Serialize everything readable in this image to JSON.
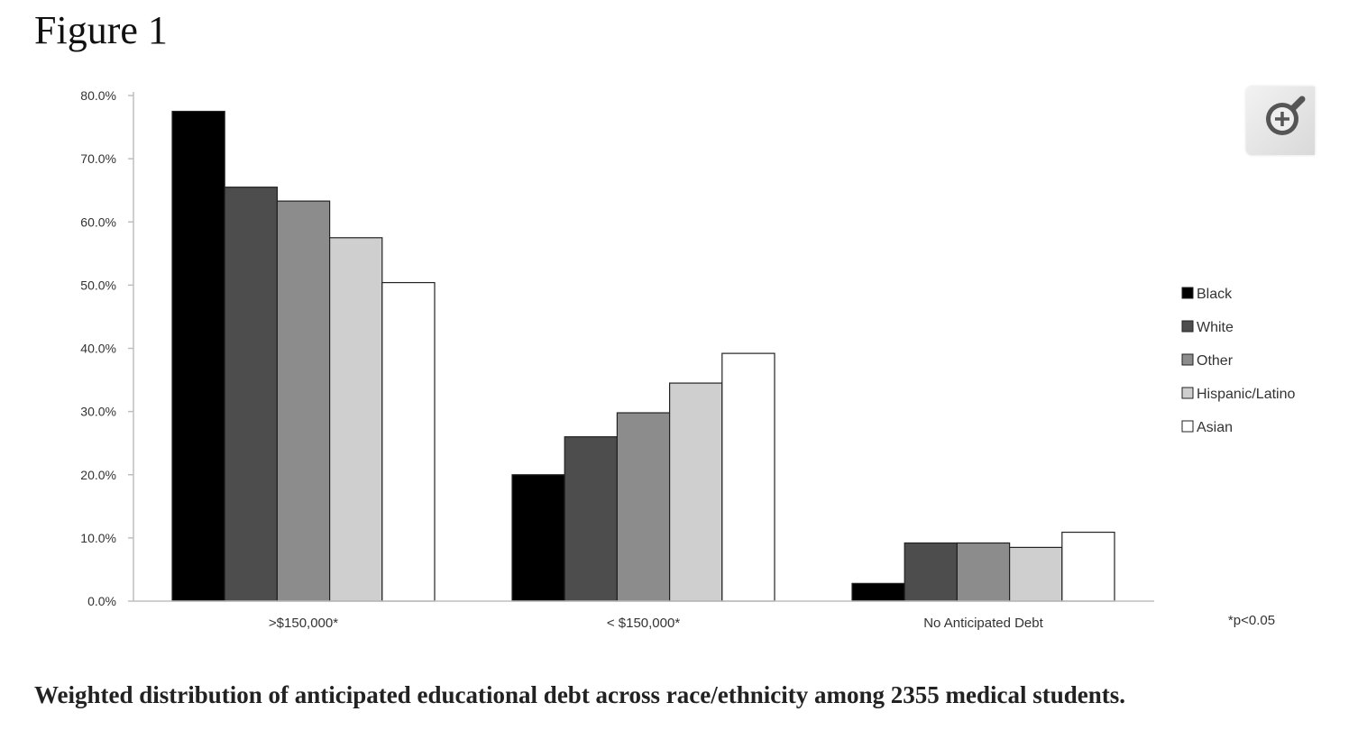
{
  "figure_label": "Figure 1",
  "caption": "Weighted distribution of anticipated educational debt across race/ethnicity among 2355 medical students.",
  "footnote": "*p<0.05",
  "colors": {
    "Black": "#000000",
    "White": "#4d4d4d",
    "Other": "#8c8c8c",
    "Hispanic/Latino": "#cfcfcf",
    "Asian": "#ffffff",
    "axis": "#bfbfbf",
    "bar_outline": "#222222"
  },
  "zoom_icon": "zoom-in-magnifier-icon",
  "chart_data": {
    "type": "bar",
    "categories": [
      ">$150,000*",
      "< $150,000*",
      "No Anticipated Debt"
    ],
    "series": [
      {
        "name": "Black",
        "values": [
          77.5,
          20.0,
          2.8
        ]
      },
      {
        "name": "White",
        "values": [
          65.5,
          26.0,
          9.2
        ]
      },
      {
        "name": "Other",
        "values": [
          63.3,
          29.8,
          9.2
        ]
      },
      {
        "name": "Hispanic/Latino",
        "values": [
          57.5,
          34.5,
          8.5
        ]
      },
      {
        "name": "Asian",
        "values": [
          50.4,
          39.2,
          10.9
        ]
      }
    ],
    "ylim": [
      0,
      80
    ],
    "yticks": [
      0,
      10,
      20,
      30,
      40,
      50,
      60,
      70,
      80
    ],
    "ytick_labels": [
      "0.0%",
      "10.0%",
      "20.0%",
      "30.0%",
      "40.0%",
      "50.0%",
      "60.0%",
      "70.0%",
      "80.0%"
    ],
    "title": "",
    "xlabel": "",
    "ylabel": "",
    "grid": false,
    "legend_position": "right"
  }
}
